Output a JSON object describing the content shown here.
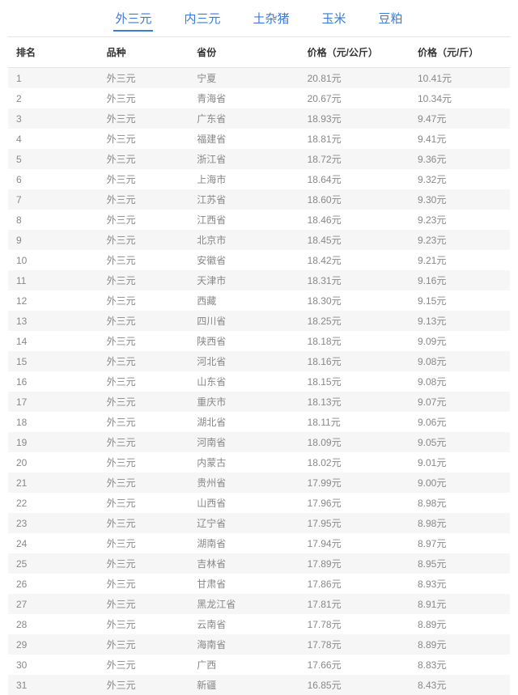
{
  "tabs": [
    {
      "label": "外三元",
      "active": true
    },
    {
      "label": "内三元",
      "active": false
    },
    {
      "label": "土杂猪",
      "active": false
    },
    {
      "label": "玉米",
      "active": false
    },
    {
      "label": "豆粕",
      "active": false
    }
  ],
  "columns": [
    "排名",
    "品种",
    "省份",
    "价格（元/公斤）",
    "价格（元/斤）"
  ],
  "rows": [
    [
      "1",
      "外三元",
      "宁夏",
      "20.81元",
      "10.41元"
    ],
    [
      "2",
      "外三元",
      "青海省",
      "20.67元",
      "10.34元"
    ],
    [
      "3",
      "外三元",
      "广东省",
      "18.93元",
      "9.47元"
    ],
    [
      "4",
      "外三元",
      "福建省",
      "18.81元",
      "9.41元"
    ],
    [
      "5",
      "外三元",
      "浙江省",
      "18.72元",
      "9.36元"
    ],
    [
      "6",
      "外三元",
      "上海市",
      "18.64元",
      "9.32元"
    ],
    [
      "7",
      "外三元",
      "江苏省",
      "18.60元",
      "9.30元"
    ],
    [
      "8",
      "外三元",
      "江西省",
      "18.46元",
      "9.23元"
    ],
    [
      "9",
      "外三元",
      "北京市",
      "18.45元",
      "9.23元"
    ],
    [
      "10",
      "外三元",
      "安徽省",
      "18.42元",
      "9.21元"
    ],
    [
      "11",
      "外三元",
      "天津市",
      "18.31元",
      "9.16元"
    ],
    [
      "12",
      "外三元",
      "西藏",
      "18.30元",
      "9.15元"
    ],
    [
      "13",
      "外三元",
      "四川省",
      "18.25元",
      "9.13元"
    ],
    [
      "14",
      "外三元",
      "陕西省",
      "18.18元",
      "9.09元"
    ],
    [
      "15",
      "外三元",
      "河北省",
      "18.16元",
      "9.08元"
    ],
    [
      "16",
      "外三元",
      "山东省",
      "18.15元",
      "9.08元"
    ],
    [
      "17",
      "外三元",
      "重庆市",
      "18.13元",
      "9.07元"
    ],
    [
      "18",
      "外三元",
      "湖北省",
      "18.11元",
      "9.06元"
    ],
    [
      "19",
      "外三元",
      "河南省",
      "18.09元",
      "9.05元"
    ],
    [
      "20",
      "外三元",
      "内蒙古",
      "18.02元",
      "9.01元"
    ],
    [
      "21",
      "外三元",
      "贵州省",
      "17.99元",
      "9.00元"
    ],
    [
      "22",
      "外三元",
      "山西省",
      "17.96元",
      "8.98元"
    ],
    [
      "23",
      "外三元",
      "辽宁省",
      "17.95元",
      "8.98元"
    ],
    [
      "24",
      "外三元",
      "湖南省",
      "17.94元",
      "8.97元"
    ],
    [
      "25",
      "外三元",
      "吉林省",
      "17.89元",
      "8.95元"
    ],
    [
      "26",
      "外三元",
      "甘肃省",
      "17.86元",
      "8.93元"
    ],
    [
      "27",
      "外三元",
      "黑龙江省",
      "17.81元",
      "8.91元"
    ],
    [
      "28",
      "外三元",
      "云南省",
      "17.78元",
      "8.89元"
    ],
    [
      "29",
      "外三元",
      "海南省",
      "17.78元",
      "8.89元"
    ],
    [
      "30",
      "外三元",
      "广西",
      "17.66元",
      "8.83元"
    ],
    [
      "31",
      "外三元",
      "新疆",
      "16.85元",
      "8.43元"
    ]
  ],
  "colors": {
    "tab_link": "#3a7bd5",
    "border": "#e5e5e5",
    "row_odd_bg": "#f6f6f6",
    "row_even_bg": "#ffffff",
    "header_text": "#333333",
    "cell_text": "#888888"
  }
}
